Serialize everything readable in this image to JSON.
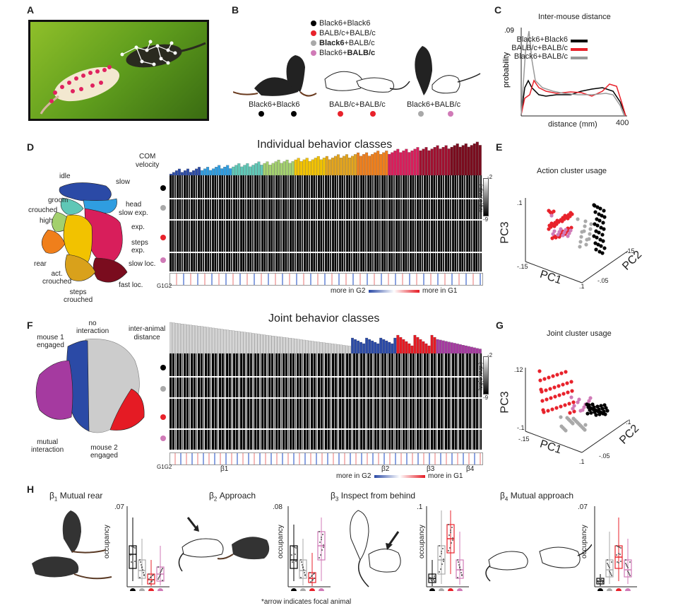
{
  "panels": {
    "A": "A",
    "B": "B",
    "C": "C",
    "D": "D",
    "E": "E",
    "F": "F",
    "G": "G",
    "H": "H"
  },
  "colors": {
    "black6": "#000000",
    "balbc": "#e8222b",
    "mixed_b6": "#a9a9a9",
    "mixed_balbc": "#d07ab7",
    "joint_blue": "#2b4aa6",
    "joint_red": "#e51b24",
    "joint_purple": "#a53aa0",
    "joint_gray": "#cccccc"
  },
  "legend_B": {
    "items": [
      {
        "text_plain": "Black6+Black6",
        "color": "#000000"
      },
      {
        "text_plain": "BALB/c+BALB/c",
        "color": "#e8222b"
      },
      {
        "text_bold": "Black6",
        "text_rest": "+BALB/c",
        "color": "#a9a9a9"
      },
      {
        "text_plain": "Black6+",
        "text_bold": "BALB/c",
        "color": "#d07ab7"
      }
    ],
    "pair_labels": [
      "Black6+Black6",
      "BALB/c+BALB/c",
      "Black6+BALB/c"
    ]
  },
  "panel_C": {
    "title": "Inter-mouse distance",
    "ylabel": "probability",
    "xlabel": "distance (mm)",
    "y_tick": ".09",
    "x_tick": "400",
    "legend": [
      "Black6+Black6",
      "BALB/c+BALB/c",
      "Black6+BALB/c"
    ]
  },
  "panel_D": {
    "title": "Individual behavior classes",
    "com_label": "COM\nvelocity",
    "regions": [
      "idle",
      "slow",
      "groom",
      "head",
      "crouched",
      "slow exp.",
      "high",
      "exp.",
      "steps\nexp.",
      "rear",
      "slow loc.",
      "act.\ncrouched",
      "fast loc.",
      "steps\ncrouched"
    ],
    "colorbar_label": "log(occup.)",
    "cb_min": "-9",
    "cb_max": "-2",
    "g_labels": "G1G2",
    "more_g2": "more in G2",
    "more_g1": "more in G1"
  },
  "panel_E": {
    "title": "Action cluster usage",
    "axes": [
      "PC1",
      "PC2",
      "PC3"
    ],
    "ticks": [
      ".1",
      "-.15",
      ".1",
      "-.05",
      ".15"
    ]
  },
  "panel_F": {
    "title": "Joint behavior classes",
    "bar_label": "inter-animal\ndistance",
    "regions": [
      "no\ninteraction",
      "mouse 1\nengaged",
      "mutual\ninteraction",
      "mouse 2\nengaged"
    ],
    "colorbar_label": "log(occup.)",
    "cb_min": "-9",
    "cb_max": "-2",
    "g_labels": "G1G2",
    "betas": [
      "β1",
      "β2",
      "β3",
      "β4"
    ],
    "more_g2": "more in G2",
    "more_g1": "more in G1"
  },
  "panel_G": {
    "title": "Joint cluster usage",
    "axes": [
      "PC1",
      "PC2",
      "PC3"
    ],
    "ticks": [
      ".12",
      "-.1",
      "-.15",
      ".1",
      "-.05",
      ".1"
    ]
  },
  "panel_H": {
    "plots": [
      {
        "title_sym": "β",
        "title_sub": "1",
        "title_rest": " Mutual rear",
        "ytick": ".07",
        "ylabel": "occupancy"
      },
      {
        "title_sym": "β",
        "title_sub": "2",
        "title_rest": " Approach",
        "ytick": ".08",
        "ylabel": "occupancy"
      },
      {
        "title_sym": "β",
        "title_sub": "3",
        "title_rest": " Inspect from behind",
        "ytick": ".1",
        "ylabel": "occupancy"
      },
      {
        "title_sym": "β",
        "title_sub": "4",
        "title_rest": " Mutual approach",
        "ytick": ".07",
        "ylabel": "occupancy"
      }
    ],
    "footnote": "*arrow indicates focal animal"
  }
}
